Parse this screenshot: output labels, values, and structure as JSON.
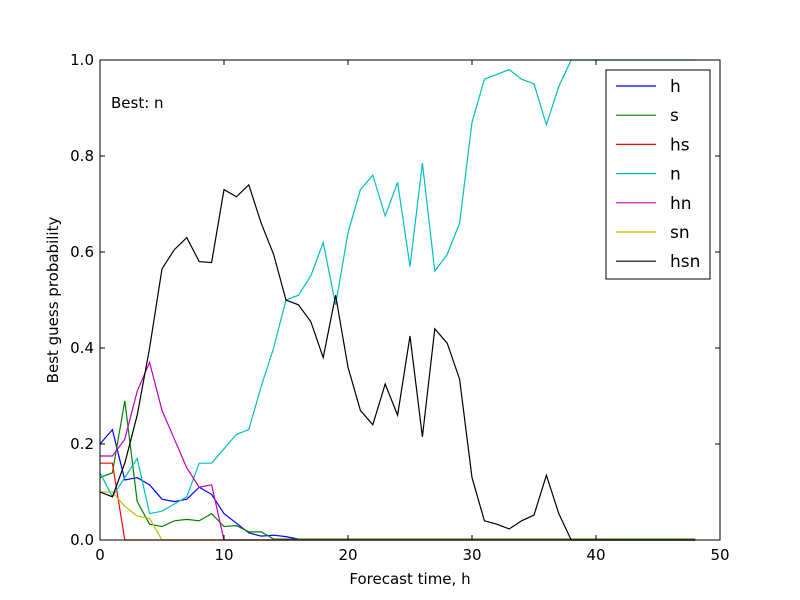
{
  "chart_data": {
    "type": "line",
    "title": "",
    "xlabel": "Forecast time, h",
    "ylabel": "Best guess probability",
    "xlim": [
      0,
      50
    ],
    "ylim": [
      0,
      1.0
    ],
    "x_ticks": [
      "0",
      "10",
      "20",
      "30",
      "40",
      "50"
    ],
    "y_ticks": [
      "0.0",
      "0.2",
      "0.4",
      "0.6",
      "0.8",
      "1.0"
    ],
    "grid": false,
    "legend_position": "top-right",
    "annotation": "Best: n",
    "x": [
      0,
      1,
      2,
      3,
      4,
      5,
      6,
      7,
      8,
      9,
      10,
      11,
      12,
      13,
      14,
      15,
      16,
      17,
      18,
      19,
      20,
      21,
      22,
      23,
      24,
      25,
      26,
      27,
      28,
      29,
      30,
      31,
      32,
      33,
      34,
      35,
      36,
      37,
      38,
      39,
      40,
      41,
      42,
      43,
      44,
      45,
      46,
      47,
      48
    ],
    "series": [
      {
        "name": "h",
        "color": "#0000ff",
        "values": [
          0.2,
          0.23,
          0.125,
          0.13,
          0.115,
          0.085,
          0.08,
          0.085,
          0.11,
          0.095,
          0.055,
          0.035,
          0.015,
          0.008,
          0.01,
          0.007,
          0.002,
          0.002,
          0.002,
          0.002,
          0.002,
          0.002,
          0.002,
          0.002,
          0.002,
          0.002,
          0.002,
          0.002,
          0.002,
          0.002,
          0.002,
          0.002,
          0.002,
          0.002,
          0.002,
          0.002,
          0.002,
          0.002,
          0.002,
          0.002,
          0.002,
          0.002,
          0.002,
          0.002,
          0.002,
          0.002,
          0.002,
          0.002,
          0.002
        ]
      },
      {
        "name": "s",
        "color": "#008000",
        "values": [
          0.13,
          0.14,
          0.29,
          0.08,
          0.033,
          0.028,
          0.04,
          0.043,
          0.04,
          0.055,
          0.028,
          0.03,
          0.017,
          0.017,
          0.002,
          0.002,
          0.002,
          0.002,
          0.002,
          0.002,
          0.002,
          0.002,
          0.002,
          0.002,
          0.002,
          0.002,
          0.002,
          0.002,
          0.002,
          0.002,
          0.002,
          0.002,
          0.002,
          0.002,
          0.002,
          0.002,
          0.002,
          0.002,
          0.002,
          0.002,
          0.002,
          0.002,
          0.002,
          0.002,
          0.002,
          0.002,
          0.002,
          0.002,
          0.002
        ]
      },
      {
        "name": "hs",
        "color": "#ff0000",
        "values": [
          0.16,
          0.16,
          0.0,
          0.0,
          0.0,
          0.0,
          0.0,
          0.0,
          0.0,
          0.0,
          0.0,
          0.0,
          0.0,
          0.0,
          0.0,
          0.0,
          0.0,
          0.0,
          0.0,
          0.0,
          0.0,
          0.0,
          0.0,
          0.0,
          0.0,
          0.0,
          0.0,
          0.0,
          0.0,
          0.0,
          0.0,
          0.0,
          0.0,
          0.0,
          0.0,
          0.0,
          0.0,
          0.0,
          0.0,
          0.0,
          0.0,
          0.0,
          0.0,
          0.0,
          0.0,
          0.0,
          0.0,
          0.0,
          0.0
        ]
      },
      {
        "name": "n",
        "color": "#00bfbf",
        "values": [
          0.14,
          0.09,
          0.13,
          0.17,
          0.055,
          0.06,
          0.075,
          0.09,
          0.16,
          0.16,
          0.19,
          0.22,
          0.23,
          0.32,
          0.4,
          0.5,
          0.51,
          0.55,
          0.62,
          0.49,
          0.64,
          0.73,
          0.76,
          0.675,
          0.745,
          0.57,
          0.785,
          0.56,
          0.595,
          0.66,
          0.87,
          0.96,
          0.97,
          0.98,
          0.96,
          0.95,
          0.865,
          0.945,
          1.0,
          1.0,
          1.0,
          1.0,
          1.0,
          1.0,
          1.0,
          1.0,
          1.0,
          1.0,
          1.0
        ]
      },
      {
        "name": "hn",
        "color": "#bf00bf",
        "values": [
          0.175,
          0.175,
          0.21,
          0.31,
          0.37,
          0.27,
          0.21,
          0.15,
          0.11,
          0.115,
          0.0,
          0.0,
          0.0,
          0.0,
          0.0,
          0.0,
          0.0,
          0.0,
          0.0,
          0.0,
          0.0,
          0.0,
          0.0,
          0.0,
          0.0,
          0.0,
          0.0,
          0.0,
          0.0,
          0.0,
          0.0,
          0.0,
          0.0,
          0.0,
          0.0,
          0.0,
          0.0,
          0.0,
          0.0,
          0.0,
          0.0,
          0.0,
          0.0,
          0.0,
          0.0,
          0.0,
          0.0,
          0.0,
          0.0
        ]
      },
      {
        "name": "sn",
        "color": "#bfbf00",
        "values": [
          0.1,
          0.1,
          0.07,
          0.05,
          0.045,
          0.0,
          0.0,
          0.0,
          0.0,
          0.0,
          0.0,
          0.0,
          0.0,
          0.0,
          0.0,
          0.0,
          0.0,
          0.0,
          0.0,
          0.0,
          0.0,
          0.0,
          0.0,
          0.0,
          0.0,
          0.0,
          0.0,
          0.0,
          0.0,
          0.0,
          0.0,
          0.0,
          0.0,
          0.0,
          0.0,
          0.0,
          0.0,
          0.0,
          0.0,
          0.0,
          0.0,
          0.0,
          0.0,
          0.0,
          0.0,
          0.0,
          0.0,
          0.0,
          0.0
        ]
      },
      {
        "name": "hsn",
        "color": "#000000",
        "values": [
          0.1,
          0.09,
          0.16,
          0.26,
          0.4,
          0.565,
          0.605,
          0.63,
          0.58,
          0.578,
          0.73,
          0.715,
          0.74,
          0.66,
          0.595,
          0.5,
          0.49,
          0.455,
          0.38,
          0.51,
          0.36,
          0.27,
          0.24,
          0.325,
          0.26,
          0.425,
          0.215,
          0.44,
          0.41,
          0.335,
          0.13,
          0.04,
          0.033,
          0.023,
          0.04,
          0.052,
          0.135,
          0.055,
          0.0,
          0.0,
          0.0,
          0.0,
          0.0,
          0.0,
          0.0,
          0.0,
          0.0,
          0.0,
          0.0
        ]
      }
    ]
  }
}
